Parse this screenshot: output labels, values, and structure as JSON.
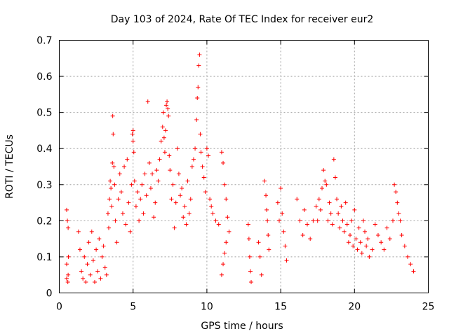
{
  "chart_data": {
    "type": "scatter",
    "title": "Day 103 of 2024, Rate Of TEC Index for receiver eur2",
    "xlabel": "GPS time / hours",
    "ylabel": "ROTI / TECUs",
    "xlim": [
      0,
      25
    ],
    "ylim": [
      0,
      0.7
    ],
    "x_ticks": [
      0,
      5,
      10,
      15,
      20,
      25
    ],
    "y_ticks": [
      0,
      0.1,
      0.2,
      0.3,
      0.4,
      0.5,
      0.6,
      0.7
    ],
    "x_tick_labels": [
      "0",
      "5",
      "10",
      "15",
      "20",
      "25"
    ],
    "y_tick_labels": [
      "0",
      "0.1",
      "0.2",
      "0.3",
      "0.4",
      "0.5",
      "0.6",
      "0.7"
    ],
    "grid": true,
    "marker": "+",
    "color": "#ff0000",
    "series": [
      {
        "x": [
          0.5,
          0.5,
          0.5,
          0.55,
          0.6,
          0.62,
          0.6,
          0.58,
          1.3,
          1.4,
          1.5,
          1.6,
          1.7,
          1.8,
          1.9,
          2.0,
          2.1,
          2.2,
          2.3,
          2.4,
          2.5,
          2.6,
          2.7,
          2.8,
          2.9,
          3.0,
          3.1,
          3.2,
          3.3,
          3.35,
          3.4,
          3.45,
          3.5,
          3.55,
          3.6,
          3.62,
          3.65,
          3.7,
          3.75,
          3.8,
          3.9,
          4.0,
          4.1,
          4.2,
          4.3,
          4.4,
          4.5,
          4.6,
          4.7,
          4.8,
          4.9,
          4.95,
          5.0,
          5.0,
          5.05,
          5.1,
          5.2,
          5.3,
          5.4,
          5.5,
          5.6,
          5.7,
          5.8,
          5.9,
          6.0,
          6.1,
          6.2,
          6.3,
          6.4,
          6.5,
          6.6,
          6.7,
          6.8,
          6.9,
          7.0,
          7.05,
          7.1,
          7.15,
          7.2,
          7.25,
          7.3,
          7.35,
          7.4,
          7.45,
          7.5,
          7.6,
          7.7,
          7.8,
          7.9,
          8.0,
          8.1,
          8.2,
          8.3,
          8.4,
          8.5,
          8.6,
          8.7,
          8.8,
          8.9,
          9.0,
          9.1,
          9.2,
          9.3,
          9.35,
          9.4,
          9.45,
          9.5,
          9.55,
          9.6,
          9.7,
          9.8,
          9.9,
          10.0,
          10.1,
          10.2,
          10.3,
          10.4,
          10.6,
          10.8,
          11.0,
          11.1,
          11.2,
          11.3,
          11.4,
          11.5,
          11.3,
          11.2,
          11.1,
          11.0,
          12.8,
          12.85,
          12.9,
          12.95,
          13.0,
          13.5,
          13.6,
          13.7,
          13.9,
          14.0,
          14.05,
          14.1,
          14.15,
          14.2,
          14.8,
          14.9,
          15.0,
          15.1,
          15.2,
          15.3,
          15.4,
          16.1,
          16.3,
          16.5,
          16.6,
          16.8,
          17.0,
          17.2,
          17.4,
          17.5,
          17.6,
          17.7,
          17.8,
          17.9,
          18.0,
          18.1,
          18.2,
          18.3,
          18.4,
          18.5,
          18.6,
          18.7,
          18.8,
          18.9,
          19.0,
          19.1,
          19.2,
          19.3,
          19.4,
          19.5,
          19.6,
          19.7,
          19.8,
          19.9,
          20.0,
          20.1,
          20.2,
          20.3,
          20.4,
          20.5,
          20.6,
          20.7,
          20.8,
          20.9,
          21.0,
          21.2,
          21.4,
          21.6,
          21.8,
          22.0,
          22.2,
          22.4,
          22.6,
          22.7,
          22.8,
          22.9,
          23.0,
          23.1,
          23.2,
          23.4,
          23.6,
          23.8,
          24.0
        ],
        "y": [
          0.23,
          0.08,
          0.04,
          0.2,
          0.18,
          0.1,
          0.05,
          0.03,
          0.17,
          0.12,
          0.06,
          0.04,
          0.1,
          0.03,
          0.08,
          0.14,
          0.05,
          0.17,
          0.09,
          0.03,
          0.12,
          0.06,
          0.15,
          0.04,
          0.1,
          0.13,
          0.07,
          0.05,
          0.22,
          0.18,
          0.26,
          0.31,
          0.29,
          0.24,
          0.36,
          0.49,
          0.44,
          0.35,
          0.3,
          0.2,
          0.14,
          0.26,
          0.33,
          0.28,
          0.22,
          0.35,
          0.19,
          0.37,
          0.25,
          0.17,
          0.3,
          0.44,
          0.45,
          0.42,
          0.39,
          0.31,
          0.24,
          0.28,
          0.2,
          0.26,
          0.3,
          0.22,
          0.33,
          0.27,
          0.53,
          0.36,
          0.29,
          0.33,
          0.21,
          0.25,
          0.34,
          0.31,
          0.37,
          0.42,
          0.46,
          0.5,
          0.43,
          0.39,
          0.45,
          0.52,
          0.53,
          0.51,
          0.49,
          0.38,
          0.34,
          0.26,
          0.3,
          0.18,
          0.25,
          0.4,
          0.33,
          0.27,
          0.29,
          0.21,
          0.24,
          0.19,
          0.31,
          0.22,
          0.26,
          0.35,
          0.37,
          0.4,
          0.48,
          0.54,
          0.57,
          0.63,
          0.66,
          0.44,
          0.39,
          0.35,
          0.32,
          0.28,
          0.4,
          0.38,
          0.26,
          0.24,
          0.22,
          0.2,
          0.19,
          0.39,
          0.36,
          0.3,
          0.26,
          0.21,
          0.17,
          0.14,
          0.11,
          0.08,
          0.05,
          0.19,
          0.15,
          0.1,
          0.06,
          0.03,
          0.14,
          0.1,
          0.05,
          0.31,
          0.27,
          0.23,
          0.2,
          0.16,
          0.12,
          0.25,
          0.2,
          0.29,
          0.22,
          0.17,
          0.13,
          0.09,
          0.26,
          0.2,
          0.16,
          0.23,
          0.19,
          0.15,
          0.2,
          0.24,
          0.2,
          0.26,
          0.23,
          0.29,
          0.34,
          0.31,
          0.3,
          0.2,
          0.25,
          0.22,
          0.19,
          0.37,
          0.32,
          0.26,
          0.22,
          0.18,
          0.24,
          0.2,
          0.17,
          0.25,
          0.19,
          0.14,
          0.16,
          0.2,
          0.13,
          0.23,
          0.15,
          0.12,
          0.18,
          0.14,
          0.11,
          0.2,
          0.17,
          0.13,
          0.15,
          0.1,
          0.12,
          0.19,
          0.16,
          0.14,
          0.12,
          0.18,
          0.15,
          0.2,
          0.3,
          0.28,
          0.25,
          0.22,
          0.2,
          0.16,
          0.13,
          0.1,
          0.08,
          0.06
        ]
      }
    ]
  }
}
